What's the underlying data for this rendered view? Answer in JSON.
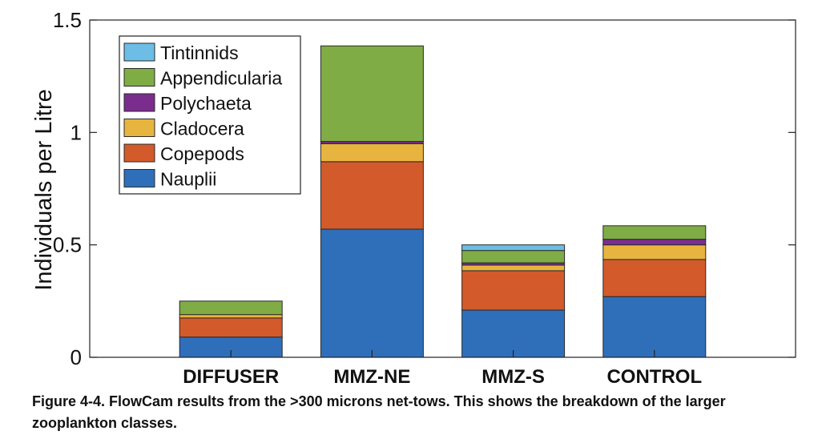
{
  "chart_data": {
    "type": "bar",
    "stacked": true,
    "title": "",
    "xlabel": "",
    "ylabel": "Individuals per Litre",
    "ylim": [
      0,
      1.5
    ],
    "yticks": [
      0,
      0.5,
      1,
      1.5
    ],
    "ytick_labels": [
      "0",
      "0.5",
      "1",
      "1.5"
    ],
    "grid": false,
    "legend_position": "top-left",
    "categories": [
      "DIFFUSER",
      "MMZ-NE",
      "MMZ-S",
      "CONTROL"
    ],
    "series": [
      {
        "name": "Nauplii",
        "color": "#2f6fba",
        "values": [
          0.09,
          0.57,
          0.21,
          0.27
        ]
      },
      {
        "name": "Copepods",
        "color": "#d35a2b",
        "values": [
          0.085,
          0.3,
          0.175,
          0.165
        ]
      },
      {
        "name": "Cladocera",
        "color": "#e8b440",
        "values": [
          0.015,
          0.08,
          0.025,
          0.065
        ]
      },
      {
        "name": "Polychaeta",
        "color": "#7b2d8e",
        "values": [
          0.0,
          0.01,
          0.01,
          0.025
        ]
      },
      {
        "name": "Appendicularia",
        "color": "#7fac45",
        "values": [
          0.06,
          0.425,
          0.055,
          0.06
        ]
      },
      {
        "name": "Tintinnids",
        "color": "#6dbde6",
        "values": [
          0.0,
          0.0,
          0.025,
          0.0
        ]
      }
    ]
  },
  "caption": "Figure 4-4. FlowCam results from the >300 microns net-tows. This shows the breakdown of the larger zooplankton classes."
}
